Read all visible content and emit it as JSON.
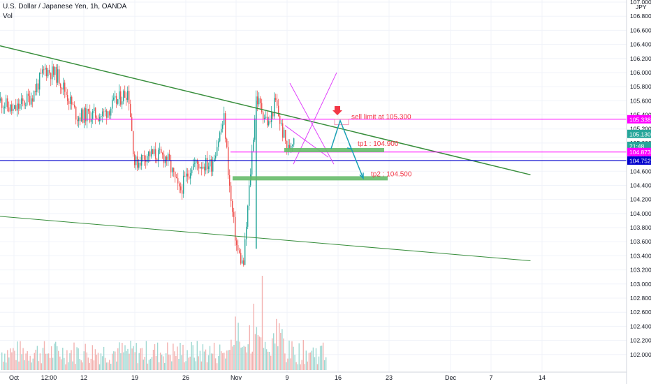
{
  "header": {
    "title": "U.S. Dollar / Japanese Yen, 1h, OANDA",
    "volume_label": "Vol"
  },
  "colors": {
    "up": "#26a69a",
    "down": "#ef5350",
    "volume_up": "#9fd8d2",
    "volume_down": "#f3b2b0",
    "trendline": "#388e3c",
    "level_magenta": "#ff00ff",
    "current_price_line": "#0000cc",
    "target_zone": "#66bb6a",
    "projection_arrow": "#1ba1b5",
    "sell_arrow": "#f23645",
    "axis_text": "#131722",
    "grid": "#f0f3fa"
  },
  "chart_data": {
    "type": "candlestick",
    "symbol": "U.S. Dollar / Japanese Yen",
    "timeframe": "1h",
    "broker": "OANDA",
    "y_axis_unit": "JPY",
    "y_axis_ticks": [
      "107.000",
      "106.800",
      "106.600",
      "106.400",
      "106.200",
      "106.000",
      "105.800",
      "105.600",
      "105.400",
      "105.200",
      "105.000",
      "104.800",
      "104.600",
      "104.400",
      "104.200",
      "104.000",
      "103.800",
      "103.600",
      "103.400",
      "103.200",
      "103.000",
      "102.800",
      "102.600",
      "102.400",
      "102.200",
      "102.000"
    ],
    "x_axis_ticks": [
      "Oct",
      "12:00",
      "12",
      "19",
      "26",
      "Nov",
      "9",
      "16",
      "23",
      "Dec",
      "7",
      "14"
    ],
    "ylim": [
      101.75,
      107.0
    ],
    "price_labels": [
      {
        "text": "105.338",
        "value": 105.338,
        "color": "#ff00ff"
      },
      {
        "text": "105.130",
        "value": 105.13,
        "color": "#26a69a"
      },
      {
        "text": "21:48",
        "value": 104.96,
        "color": "#26a69a"
      },
      {
        "text": "104.873",
        "value": 104.873,
        "color": "#ff00ff"
      },
      {
        "text": "104.752",
        "value": 104.752,
        "color": "#0000cc"
      }
    ],
    "levels": [
      {
        "name": "sell-limit-level",
        "value": 105.338,
        "color": "#ff00ff"
      },
      {
        "name": "tp1-level",
        "value": 104.873,
        "color": "#ff00ff"
      },
      {
        "name": "current-price-line",
        "value": 104.752,
        "color": "#0000cc"
      }
    ],
    "trendlines": [
      {
        "name": "upper-trendline",
        "from": {
          "x": "Sep 30",
          "y": 106.38
        },
        "to": {
          "x": "Dec 22",
          "y": 104.55
        }
      },
      {
        "name": "lower-trendline",
        "from": {
          "x": "Sep 30",
          "y": 103.96
        },
        "to": {
          "x": "Dec 22",
          "y": 103.33
        }
      }
    ],
    "annotations": [
      {
        "text": "sell limit at 105.300",
        "price": 105.3,
        "color": "#f23645"
      },
      {
        "text": "tp1 : 104.900",
        "price": 104.9,
        "color": "#f23645"
      },
      {
        "text": "tp2 : 104.500",
        "price": 104.5,
        "color": "#f23645"
      }
    ],
    "target_zones": [
      {
        "name": "tp1-zone",
        "price": 104.9
      },
      {
        "name": "tp2-zone",
        "price": 104.5
      }
    ],
    "price_path": [
      {
        "x": "Sep 30",
        "close": 105.6
      },
      {
        "x": "Oct 2",
        "close": 105.45
      },
      {
        "x": "Oct 5",
        "close": 105.68
      },
      {
        "x": "Oct 7",
        "close": 106.05
      },
      {
        "x": "Oct 9",
        "close": 105.95
      },
      {
        "x": "Oct 12",
        "close": 105.38
      },
      {
        "x": "Oct 14",
        "close": 105.4
      },
      {
        "x": "Oct 16",
        "close": 105.4
      },
      {
        "x": "Oct 20",
        "close": 105.75
      },
      {
        "x": "Oct 21",
        "close": 104.7
      },
      {
        "x": "Oct 23",
        "close": 104.85
      },
      {
        "x": "Oct 26",
        "close": 104.8
      },
      {
        "x": "Oct 28",
        "close": 104.3
      },
      {
        "x": "Oct 30",
        "close": 104.7
      },
      {
        "x": "Nov 2",
        "close": 104.7
      },
      {
        "x": "Nov 4",
        "close": 105.35
      },
      {
        "x": "Nov 5",
        "close": 104.2
      },
      {
        "x": "Nov 6",
        "close": 103.5
      },
      {
        "x": "Nov 7",
        "close": 103.25
      },
      {
        "x": "Nov 9",
        "close": 105.65
      },
      {
        "x": "Nov 11",
        "close": 105.25
      },
      {
        "x": "Nov 12",
        "close": 105.6
      },
      {
        "x": "Nov 13",
        "close": 105.2
      },
      {
        "x": "Nov 14",
        "close": 104.9
      },
      {
        "x": "Nov 15",
        "close": 105.13
      }
    ],
    "volume_bars": 230,
    "grid": true,
    "legend": "none"
  }
}
